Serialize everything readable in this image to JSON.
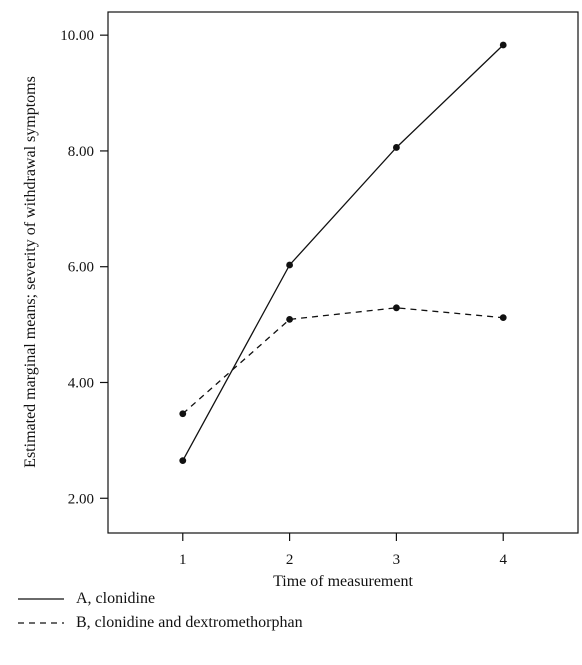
{
  "chart_data": {
    "type": "line",
    "xlabel": "Time of measurement",
    "ylabel": "Estimated marginal means; severity of withdrawal symptoms",
    "x": [
      1,
      2,
      3,
      4
    ],
    "xlim": [
      0.3,
      4.7
    ],
    "ylim": [
      1.4,
      10.4
    ],
    "yticks": [
      2.0,
      4.0,
      6.0,
      8.0,
      10.0
    ],
    "ytick_labels": [
      "2.00",
      "4.00",
      "6.00",
      "8.00",
      "10.00"
    ],
    "xtick_labels": [
      "1",
      "2",
      "3",
      "4"
    ],
    "grid": false,
    "legend_position": "bottom-left",
    "series": [
      {
        "name": "A, clonidine",
        "values": [
          2.65,
          6.03,
          8.06,
          9.83
        ],
        "line_style": "solid",
        "color": "#111111"
      },
      {
        "name": "B, clonidine and dextromethorphan",
        "values": [
          3.46,
          5.09,
          5.29,
          5.12
        ],
        "line_style": "dashed",
        "color": "#111111"
      }
    ]
  }
}
